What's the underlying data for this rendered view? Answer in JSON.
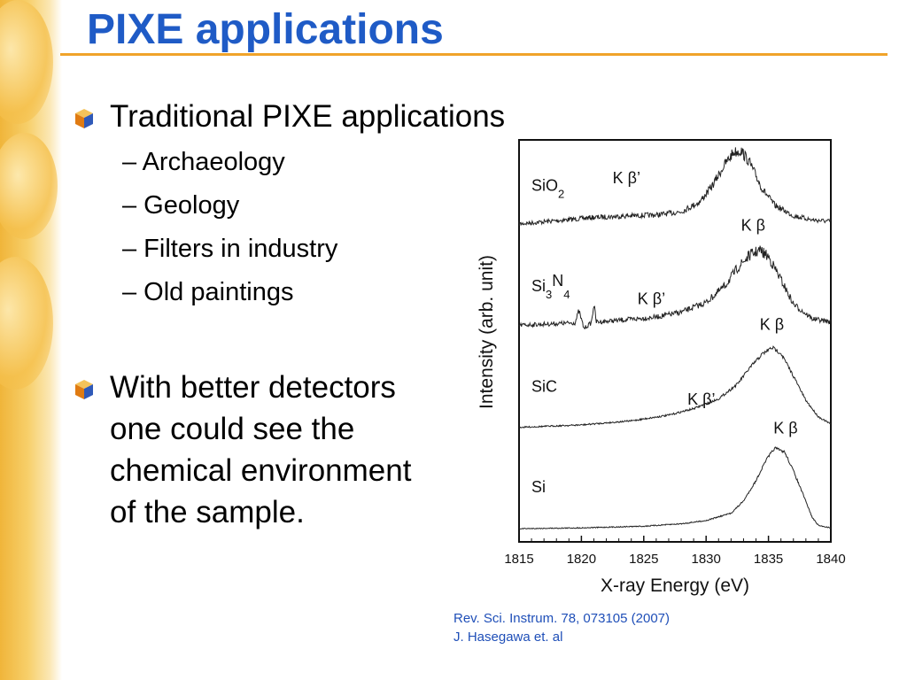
{
  "slide": {
    "title": "PIXE applications",
    "bullet1": "Traditional PIXE applications",
    "sub_items": [
      "– Archaeology",
      "– Geology",
      "– Filters in industry",
      "– Old paintings"
    ],
    "bullet2_lines": [
      "With better detectors",
      "one could see the",
      "chemical environment",
      "of the sample."
    ],
    "citation_lines": [
      "Rev. Sci. Instrum. 78, 073105 (2007)",
      "J. Hasegawa et. al"
    ]
  },
  "chart_data": {
    "type": "line",
    "title": "",
    "xlabel": "X-ray Energy (eV)",
    "ylabel": "Intensity (arb. unit)",
    "xlim": [
      1815,
      1840
    ],
    "x_ticks": [
      1815,
      1820,
      1825,
      1830,
      1835,
      1840
    ],
    "grid": false,
    "legend": "none",
    "series": [
      {
        "name": "SiO2",
        "label_main": "SiO",
        "label_sub": "2",
        "x": [
          1815,
          1818,
          1821,
          1824,
          1826,
          1828,
          1829.5,
          1830.5,
          1831.5,
          1832.2,
          1832.8,
          1833.5,
          1834.5,
          1835.5,
          1837,
          1838.5,
          1840
        ],
        "y": [
          0.05,
          0.09,
          0.13,
          0.15,
          0.16,
          0.2,
          0.32,
          0.52,
          0.78,
          0.93,
          0.95,
          0.8,
          0.48,
          0.28,
          0.15,
          0.1,
          0.08
        ],
        "annotations": [
          {
            "text": "K β",
            "x": 1831.8,
            "y": 1.25
          },
          {
            "text": "K β’",
            "x": 1822.5,
            "y": 0.55
          }
        ]
      },
      {
        "name": "Si3N4",
        "label_main": "Si",
        "label_sub1": "3",
        "label_main2": "N",
        "label_sub2": "4",
        "x": [
          1815,
          1818,
          1819.5,
          1819.8,
          1820.2,
          1820.8,
          1821,
          1821.2,
          1823,
          1826,
          1828,
          1830,
          1831.5,
          1832.5,
          1833.5,
          1834.3,
          1835,
          1836,
          1837,
          1838.5,
          1840
        ],
        "y": [
          0.04,
          0.06,
          0.07,
          0.22,
          0.0,
          0.07,
          0.3,
          0.08,
          0.1,
          0.14,
          0.2,
          0.32,
          0.52,
          0.74,
          0.9,
          0.96,
          0.88,
          0.6,
          0.3,
          0.12,
          0.08
        ],
        "annotations": [
          {
            "text": "K β",
            "x": 1832.8,
            "y": 1.2
          },
          {
            "text": "K β’",
            "x": 1824.5,
            "y": 0.3
          }
        ]
      },
      {
        "name": "SiC",
        "label_main": "SiC",
        "x": [
          1815,
          1820,
          1824,
          1827,
          1829,
          1831,
          1832.5,
          1833.5,
          1834.5,
          1835.3,
          1836,
          1837,
          1838,
          1839,
          1840
        ],
        "y": [
          0.02,
          0.05,
          0.1,
          0.17,
          0.25,
          0.37,
          0.55,
          0.75,
          0.92,
          1.0,
          0.93,
          0.65,
          0.35,
          0.15,
          0.06
        ],
        "annotations": [
          {
            "text": "K β",
            "x": 1834.3,
            "y": 1.22
          },
          {
            "text": "K β’",
            "x": 1828.5,
            "y": 0.3
          }
        ]
      },
      {
        "name": "Si",
        "label_main": "Si",
        "x": [
          1815,
          1820,
          1825,
          1828,
          1830,
          1832,
          1833,
          1834,
          1834.8,
          1835.5,
          1836.3,
          1837,
          1837.8,
          1838.5,
          1839,
          1840
        ],
        "y": [
          0.01,
          0.02,
          0.04,
          0.07,
          0.11,
          0.2,
          0.35,
          0.6,
          0.85,
          1.0,
          0.95,
          0.72,
          0.42,
          0.15,
          0.05,
          0.02
        ],
        "annotations": [
          {
            "text": "K β",
            "x": 1835.4,
            "y": 1.18
          }
        ]
      }
    ]
  }
}
